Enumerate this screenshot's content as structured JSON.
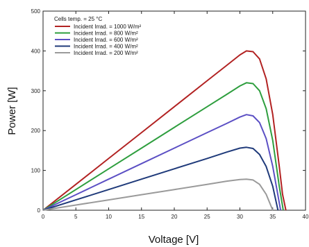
{
  "chart_data": {
    "type": "line",
    "title": "",
    "xlabel": "Voltage [V]",
    "ylabel": "Power [W]",
    "xlim": [
      0,
      40
    ],
    "ylim": [
      0,
      500
    ],
    "xticks": [
      0,
      5,
      10,
      15,
      20,
      25,
      30,
      35,
      40
    ],
    "yticks": [
      0,
      100,
      200,
      300,
      400,
      500
    ],
    "grid": false,
    "legend_position": "top-left",
    "legend_title": "Cells temp. = 25 °C",
    "series": [
      {
        "name": "Incident Irrad. = 1000 W/m²",
        "color": "#b22222",
        "x": [
          0,
          5,
          10,
          15,
          20,
          25,
          28,
          30,
          31,
          32,
          33,
          34,
          35,
          36,
          36.5,
          37
        ],
        "y": [
          0,
          65,
          130,
          195,
          260,
          325,
          364,
          390,
          400,
          398,
          380,
          330,
          240,
          110,
          40,
          0
        ]
      },
      {
        "name": "Incident Irrad. = 800 W/m²",
        "color": "#2e9e3e",
        "x": [
          0,
          5,
          10,
          15,
          20,
          25,
          28,
          30,
          31,
          32,
          33,
          34,
          35,
          36,
          36.6
        ],
        "y": [
          0,
          52,
          104,
          156,
          208,
          260,
          291,
          312,
          320,
          318,
          300,
          255,
          175,
          60,
          0
        ]
      },
      {
        "name": "Incident Irrad. = 600 W/m²",
        "color": "#5b4fc4",
        "x": [
          0,
          5,
          10,
          15,
          20,
          25,
          28,
          30,
          31,
          32,
          33,
          34,
          35,
          36.2
        ],
        "y": [
          0,
          39,
          78,
          117,
          156,
          195,
          218,
          234,
          240,
          237,
          220,
          180,
          110,
          0
        ]
      },
      {
        "name": "Incident Irrad. = 400 W/m²",
        "color": "#1f3a7a",
        "x": [
          0,
          5,
          10,
          15,
          20,
          25,
          28,
          30,
          31,
          32,
          33,
          34,
          35,
          35.8
        ],
        "y": [
          0,
          26,
          52,
          78,
          104,
          130,
          146,
          156,
          158,
          155,
          140,
          110,
          60,
          0
        ]
      },
      {
        "name": "Incident Irrad. = 200 W/m²",
        "color": "#9a9a9a",
        "x": [
          0,
          5,
          10,
          15,
          20,
          25,
          28,
          30,
          31,
          32,
          33,
          34,
          35
        ],
        "y": [
          0,
          13,
          26,
          39,
          52,
          65,
          73,
          77,
          78,
          76,
          65,
          40,
          0
        ]
      }
    ]
  }
}
